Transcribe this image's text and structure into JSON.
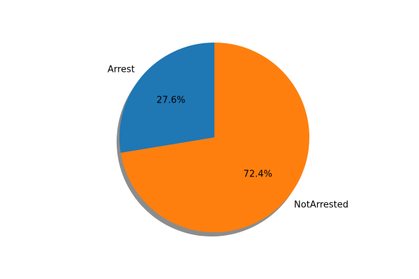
{
  "chart_data": {
    "type": "pie",
    "slices": [
      {
        "label": "Arrest",
        "value": 27.6,
        "pct_label": "27.6%",
        "color": "#1f77b4"
      },
      {
        "label": "NotArrested",
        "value": 72.4,
        "pct_label": "72.4%",
        "color": "#ff7f0e"
      }
    ],
    "start_angle_deg": 90,
    "shadow": true,
    "legend": "none"
  }
}
